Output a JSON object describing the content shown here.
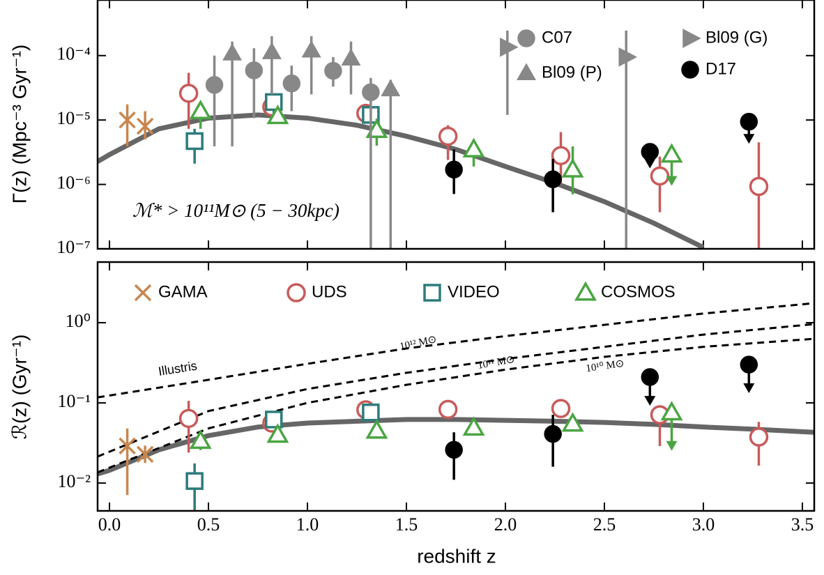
{
  "chart_data": [
    {
      "type": "scatter",
      "log_y": true,
      "ylabel": "Γ(z) (Mpc⁻³ Gyr⁻¹)",
      "annotation": "ℳ* > 10¹¹M⊙ (5 − 30kpc)",
      "xlim": [
        -0.06,
        3.56
      ],
      "ylim": [
        1e-07,
        0.00073
      ],
      "yticks": [
        {
          "value": 1e-07,
          "label": "10⁻⁷"
        },
        {
          "value": 1e-06,
          "label": "10⁻⁶"
        },
        {
          "value": 1e-05,
          "label": "10⁻⁵"
        },
        {
          "value": 0.0001,
          "label": "10⁻⁴"
        }
      ],
      "series": [
        {
          "kind": "line",
          "color": "#666666",
          "x": [
            -0.06,
            0,
            0.25,
            0.5,
            0.75,
            1.0,
            1.25,
            1.5,
            1.75,
            2.0,
            2.25,
            2.5,
            2.75,
            3.0
          ],
          "values": [
            2.26e-06,
            2.9e-06,
            7.3e-06,
            1.07e-05,
            1.2e-05,
            1.07e-05,
            8.3e-06,
            5.6e-06,
            3.5e-06,
            1.9e-06,
            1.05e-06,
            5.4e-07,
            2.5e-07,
            1.05e-07
          ]
        },
        {
          "marker": "x",
          "color": "#c8864f",
          "x": [
            0.09,
            0.18
          ],
          "values": [
            1e-05,
            8e-06
          ],
          "lower": [
            3.9e-06,
            5e-06
          ],
          "upper": [
            1.75e-05,
            1.37e-05
          ]
        },
        {
          "marker": "o",
          "color": "#c85a5a",
          "x": [
            0.4,
            0.82,
            1.295,
            1.71,
            2.28,
            2.78,
            3.28
          ],
          "values": [
            2.6e-05,
            1.6e-05,
            1.27e-05,
            5.6e-06,
            2.8e-06,
            1.35e-06,
            9.3e-07
          ],
          "lower": [
            7.3e-06,
            null,
            null,
            2.4e-06,
            1e-06,
            3.7e-07,
            1e-07
          ],
          "upper": [
            5.4e-05,
            null,
            null,
            8.3e-06,
            6.5e-06,
            2.7e-06,
            4.5e-06
          ]
        },
        {
          "marker": "s",
          "color": "#2e7b7b",
          "x": [
            0.43,
            0.83,
            1.32
          ],
          "values": [
            4.7e-06,
            1.9e-05,
            1.2e-05
          ],
          "lower": [
            2.1e-06,
            1.03e-05,
            null
          ],
          "upper": [
            7.3e-06,
            2.5e-05,
            null
          ]
        },
        {
          "marker": "^",
          "color": "#4aa542",
          "x": [
            0.46,
            0.85,
            1.35,
            1.84,
            2.34,
            2.84
          ],
          "values": [
            1.37e-05,
            1.15e-05,
            7e-06,
            3.5e-06,
            1.7e-06,
            2.9e-06
          ],
          "lower": [
            7.3e-06,
            null,
            4e-06,
            1.9e-06,
            7e-07,
            1e-06
          ],
          "upper": [
            1.85e-05,
            null,
            1.05e-05,
            5e-06,
            3.9e-06,
            3.6e-06
          ],
          "upper_limit": [
            false,
            false,
            false,
            false,
            false,
            true
          ]
        },
        {
          "name": "C07",
          "marker": "o",
          "filled": true,
          "color": "#888888",
          "x": [
            0.53,
            0.73,
            0.92,
            1.13,
            1.32
          ],
          "values": [
            3.5e-05,
            5.9e-05,
            3.7e-05,
            5.8e-05,
            2.7e-05
          ],
          "lower": [
            3.9e-06,
            1.07e-05,
            1.37e-05,
            3.3e-05,
            1e-07
          ],
          "upper": [
            0.0001,
            0.00013,
            7e-05,
            9.5e-05,
            4.5e-05
          ]
        },
        {
          "name": "Bl09 (P)",
          "marker": "^",
          "filled": true,
          "color": "#888888",
          "x": [
            0.62,
            0.82,
            1.02,
            1.22,
            1.42
          ],
          "values": [
            0.000108,
            0.000113,
            0.00012,
            9e-05,
            3e-05
          ],
          "lower": [
            3.9e-06,
            2.5e-05,
            2.5e-05,
            2.5e-05,
            1e-07
          ],
          "upper": [
            0.000165,
            0.0002,
            0.0002,
            0.000165,
            4.2e-05
          ]
        },
        {
          "name": "Bl09 (G)",
          "marker": ">",
          "filled": true,
          "color": "#888888",
          "x": [
            2.01,
            2.61
          ],
          "values": [
            0.000135,
            9.5e-05
          ],
          "lower": [
            1.2e-05,
            1e-07
          ],
          "upper": [
            0.000245,
            0.000245
          ]
        },
        {
          "name": "D17",
          "marker": "o",
          "filled": true,
          "color": "#000000",
          "x": [
            1.74,
            2.24,
            2.73,
            3.23
          ],
          "values": [
            1.7e-06,
            1.2e-06,
            3.2e-06,
            9.4e-06
          ],
          "lower": [
            7.1e-07,
            3.7e-07,
            1.86e-06,
            4.5e-06
          ],
          "upper": [
            3.5e-06,
            2.5e-06,
            null,
            null
          ],
          "upper_limit": [
            false,
            false,
            true,
            true
          ]
        }
      ]
    },
    {
      "type": "scatter",
      "log_y": true,
      "xlabel": "redshift z",
      "ylabel": "ℛ(z) (Gyr⁻¹)",
      "annotation": "Illustris",
      "xlim": [
        -0.06,
        3.56
      ],
      "ylim": [
        0.0045,
        5.7
      ],
      "xticks": [
        {
          "value": 0,
          "label": "0.0"
        },
        0.5,
        {
          "value": 1,
          "label": "1.0"
        },
        1.5,
        {
          "value": 2,
          "label": "2.0"
        },
        2.5,
        {
          "value": 3,
          "label": "3.0"
        },
        3.5
      ],
      "yticks": [
        {
          "value": 0.01,
          "label": "10⁻²"
        },
        {
          "value": 0.1,
          "label": "10⁻¹"
        },
        {
          "value": 1,
          "label": "10⁰"
        }
      ],
      "series": [
        {
          "kind": "line",
          "color": "#666666",
          "x": [
            -0.06,
            0,
            0.25,
            0.5,
            0.75,
            1.0,
            1.25,
            1.5,
            1.75,
            2.0,
            2.25,
            2.5,
            2.75,
            3.0,
            3.25,
            3.56
          ],
          "values": [
            0.013,
            0.0144,
            0.026,
            0.039,
            0.05,
            0.056,
            0.059,
            0.062,
            0.062,
            0.0606,
            0.059,
            0.057,
            0.054,
            0.05,
            0.047,
            0.043
          ]
        },
        {
          "kind": "dashed",
          "label": "10¹² M⊙",
          "color": "#000000",
          "x": [
            -0.06,
            0.5,
            1.0,
            1.5,
            2.0,
            2.5,
            3.0,
            3.56
          ],
          "values": [
            0.117,
            0.194,
            0.307,
            0.477,
            0.68,
            0.94,
            1.3,
            1.75
          ]
        },
        {
          "kind": "dashed",
          "label": "10¹¹ M⊙",
          "color": "#000000",
          "x": [
            -0.06,
            0.5,
            1.0,
            1.5,
            2.0,
            2.5,
            3.0,
            3.56
          ],
          "values": [
            0.0214,
            0.079,
            0.149,
            0.237,
            0.353,
            0.5,
            0.71,
            0.96
          ]
        },
        {
          "kind": "dashed",
          "label": "10¹⁰ M⊙",
          "color": "#000000",
          "x": [
            -0.06,
            0.5,
            1.0,
            1.5,
            2.0,
            2.5,
            3.0,
            3.56
          ],
          "values": [
            0.0136,
            0.048,
            0.1,
            0.168,
            0.26,
            0.375,
            0.5,
            0.63
          ]
        },
        {
          "name": "GAMA",
          "marker": "x",
          "color": "#c8864f",
          "x": [
            0.09,
            0.18
          ],
          "values": [
            0.029,
            0.0228
          ],
          "lower": [
            0.0071,
            0.0178
          ],
          "upper": [
            0.048,
            0.0293
          ]
        },
        {
          "name": "UDS",
          "marker": "o",
          "color": "#c85a5a",
          "x": [
            0.4,
            0.82,
            1.295,
            1.71,
            2.28,
            2.78,
            3.28
          ],
          "values": [
            0.064,
            0.056,
            0.082,
            0.083,
            0.085,
            0.071,
            0.0375
          ],
          "lower": [
            0.024,
            null,
            null,
            null,
            null,
            0.0289,
            0.0165
          ],
          "upper": [
            0.106,
            null,
            null,
            null,
            null,
            null,
            0.058
          ]
        },
        {
          "name": "VIDEO",
          "marker": "s",
          "color": "#2e7b7b",
          "x": [
            0.43,
            0.83,
            1.32
          ],
          "values": [
            0.0106,
            0.062,
            0.076
          ],
          "lower": [
            0.0045,
            null,
            null
          ],
          "upper": [
            0.0176,
            null,
            null
          ]
        },
        {
          "name": "COSMOS",
          "marker": "^",
          "color": "#4aa542",
          "x": [
            0.46,
            0.85,
            1.35,
            1.84,
            2.34,
            2.84
          ],
          "values": [
            0.0335,
            0.04,
            0.045,
            0.049,
            0.055,
            0.076
          ],
          "lower": [
            0.0258,
            null,
            null,
            null,
            null,
            0.0263
          ],
          "upper": [
            0.043,
            null,
            null,
            null,
            null,
            null
          ],
          "upper_limit": [
            false,
            false,
            false,
            false,
            false,
            true
          ]
        },
        {
          "marker": "o",
          "filled": true,
          "color": "#000000",
          "x": [
            1.74,
            2.24,
            2.73,
            3.23
          ],
          "values": [
            0.026,
            0.041,
            0.21,
            0.3
          ],
          "lower": [
            0.011,
            0.016,
            0.096,
            0.138
          ],
          "upper": [
            0.043,
            0.071,
            null,
            null
          ],
          "upper_limit": [
            false,
            false,
            true,
            true
          ]
        }
      ]
    }
  ]
}
